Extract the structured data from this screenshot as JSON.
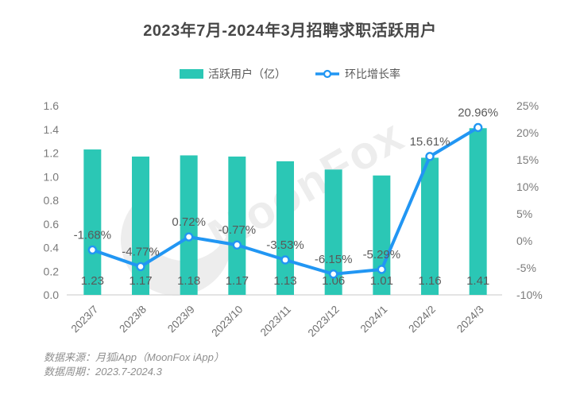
{
  "title": "2023年7月-2024年3月招聘求职活跃用户",
  "legend": {
    "bar_label": "活跃用户（亿）",
    "line_label": "环比增长率"
  },
  "watermark": {
    "text": "MoonFox"
  },
  "footer": {
    "source_line": "数据来源：月狐iApp（MoonFox iApp）",
    "period_line": "数据周期：2023.7-2024.3"
  },
  "colors": {
    "bar": "#2BC7B5",
    "line": "#2196F3",
    "data_label": "#595959",
    "tick_label": "#7A7A7A",
    "x_label": "#6E6E6E",
    "baseline": "#DCDCDC",
    "watermark": "#EDEDED"
  },
  "chart_data": {
    "type": "bar",
    "title": "2023年7月-2024年3月招聘求职活跃用户",
    "categories": [
      "2023/7",
      "2023/8",
      "2023/9",
      "2023/10",
      "2023/11",
      "2023/12",
      "2024/1",
      "2024/2",
      "2024/3"
    ],
    "series": [
      {
        "name": "活跃用户（亿）",
        "type": "bar",
        "axis": "left",
        "values": [
          1.23,
          1.17,
          1.18,
          1.17,
          1.13,
          1.06,
          1.01,
          1.16,
          1.41
        ],
        "labels": [
          "1.23",
          "1.17",
          "1.18",
          "1.17",
          "1.13",
          "1.06",
          "1.01",
          "1.16",
          "1.41"
        ]
      },
      {
        "name": "环比增长率",
        "type": "line",
        "axis": "right",
        "values": [
          -1.68,
          -4.77,
          0.72,
          -0.77,
          -3.53,
          -6.15,
          -5.29,
          15.61,
          20.96
        ],
        "labels": [
          "-1.68%",
          "-4.77%",
          "0.72%",
          "-0.77%",
          "-3.53%",
          "-6.15%",
          "-5.29%",
          "15.61%",
          "20.96%"
        ]
      }
    ],
    "left_axis": {
      "min": 0,
      "max": 1.6,
      "ticks": [
        "0.0",
        "0.2",
        "0.4",
        "0.6",
        "0.8",
        "1.0",
        "1.2",
        "1.4",
        "1.6"
      ]
    },
    "right_axis": {
      "min": -10,
      "max": 25,
      "ticks": [
        "-10%",
        "-5%",
        "0%",
        "5%",
        "10%",
        "15%",
        "20%",
        "25%"
      ]
    },
    "grid": false,
    "legend_position": "top",
    "xlabel": "",
    "ylabel": ""
  }
}
